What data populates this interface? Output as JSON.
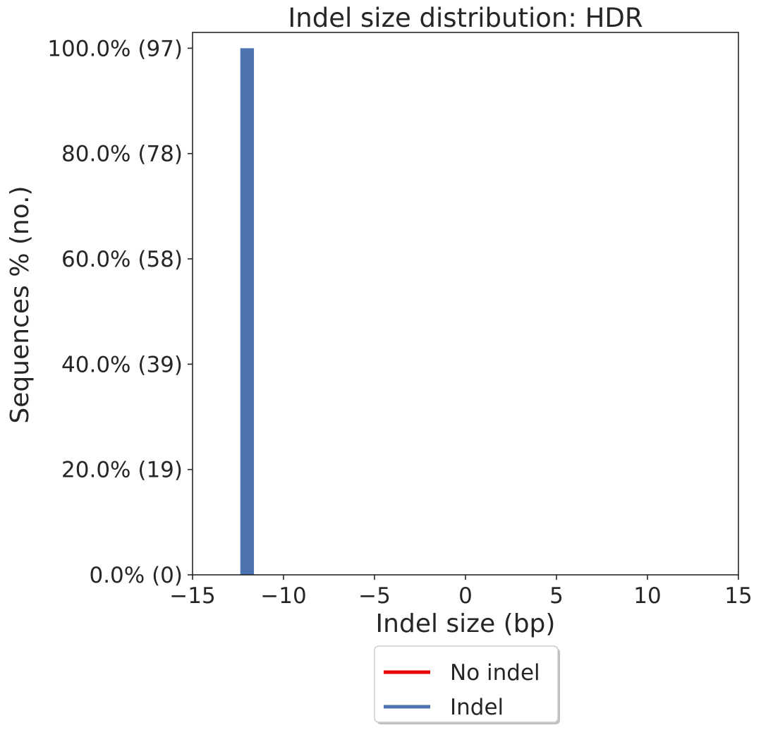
{
  "chart_data": {
    "type": "bar",
    "title": "Indel size distribution: HDR",
    "xlabel": "Indel size (bp)",
    "ylabel": "Sequences % (no.)",
    "xlim": [
      -15,
      15
    ],
    "ylim": [
      0,
      1.03
    ],
    "x_ticks": [
      -15,
      -10,
      -5,
      0,
      5,
      10,
      15
    ],
    "x_tick_labels": [
      "−15",
      "−10",
      "−5",
      "0",
      "5",
      "10",
      "15"
    ],
    "y_ticks": [
      0,
      0.2,
      0.4,
      0.6,
      0.8,
      1.0
    ],
    "y_tick_labels": [
      "0.0% (0)",
      "20.0% (19)",
      "40.0% (39)",
      "60.0% (58)",
      "80.0% (78)",
      "100.0% (97)"
    ],
    "series": [
      {
        "name": "Indel",
        "color": "#4c72b0",
        "bars": [
          {
            "x": -12,
            "value": 1.0,
            "count": 97
          }
        ]
      },
      {
        "name": "No indel",
        "color": "#e8000b",
        "bars": []
      }
    ],
    "bar_width": 0.75,
    "legend": {
      "placement": "below-center",
      "entries": [
        {
          "label": "No indel",
          "color": "#e8000b"
        },
        {
          "label": "Indel",
          "color": "#4c72b0"
        }
      ]
    },
    "grid": false
  }
}
